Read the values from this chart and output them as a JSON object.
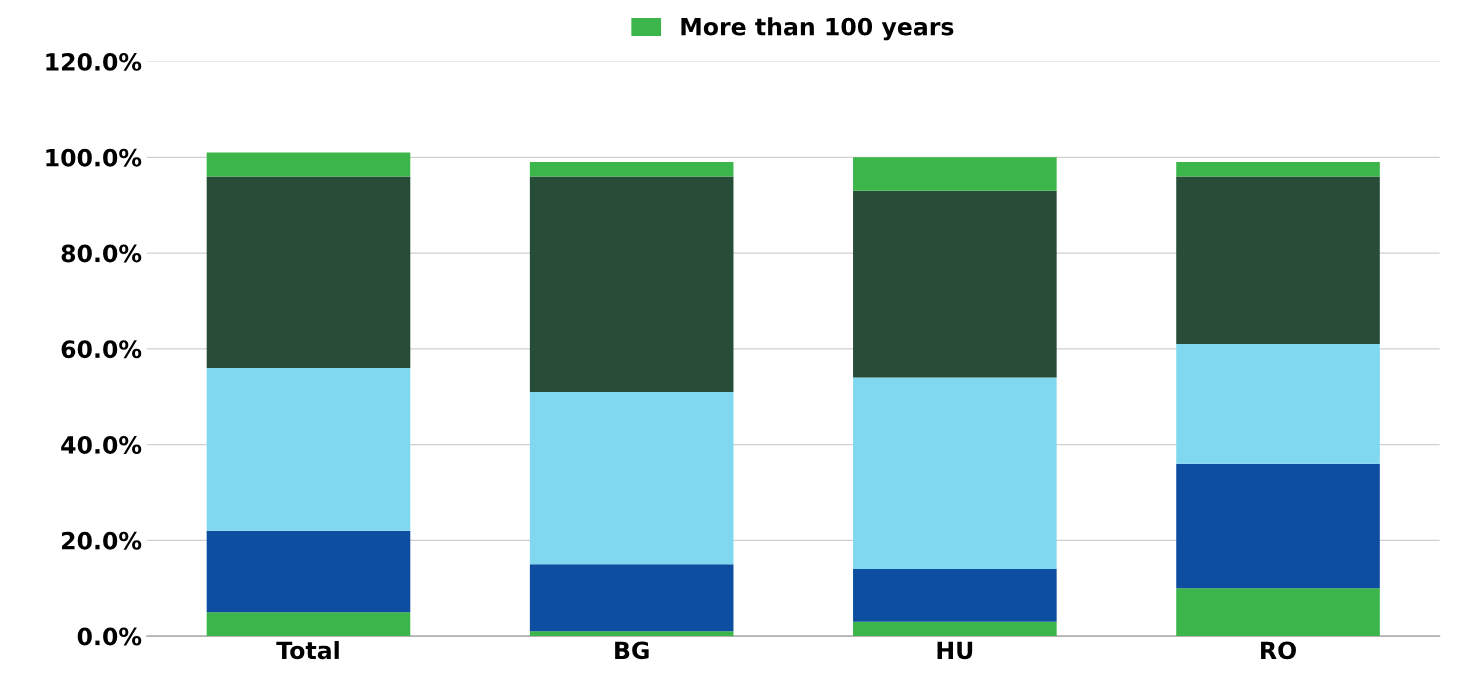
{
  "chart_data": {
    "type": "bar",
    "stacked": true,
    "categories": [
      "Total",
      "BG",
      "HU",
      "RO"
    ],
    "series": [
      {
        "color": "#3cb54a",
        "values": [
          5,
          1,
          3,
          10
        ]
      },
      {
        "color": "#0d4ea0",
        "values": [
          17,
          14,
          11,
          26
        ]
      },
      {
        "color": "#80d8f0",
        "values": [
          34,
          36,
          40,
          25
        ]
      },
      {
        "color": "#274c37",
        "values": [
          40,
          45,
          39,
          35
        ]
      },
      {
        "name": "More than 100 years",
        "color": "#3cb54a",
        "values": [
          5,
          3,
          7,
          3
        ]
      }
    ],
    "ylim": [
      0,
      120
    ],
    "yticks": [
      {
        "value": 0,
        "label": "0.0%"
      },
      {
        "value": 20,
        "label": "20.0%"
      },
      {
        "value": 40,
        "label": "40.0%"
      },
      {
        "value": 60,
        "label": "60.0%"
      },
      {
        "value": 80,
        "label": "80.0%"
      },
      {
        "value": 100,
        "label": "100.0%"
      },
      {
        "value": 120,
        "label": "120.0%"
      }
    ],
    "grid": "y",
    "legend": "top"
  }
}
